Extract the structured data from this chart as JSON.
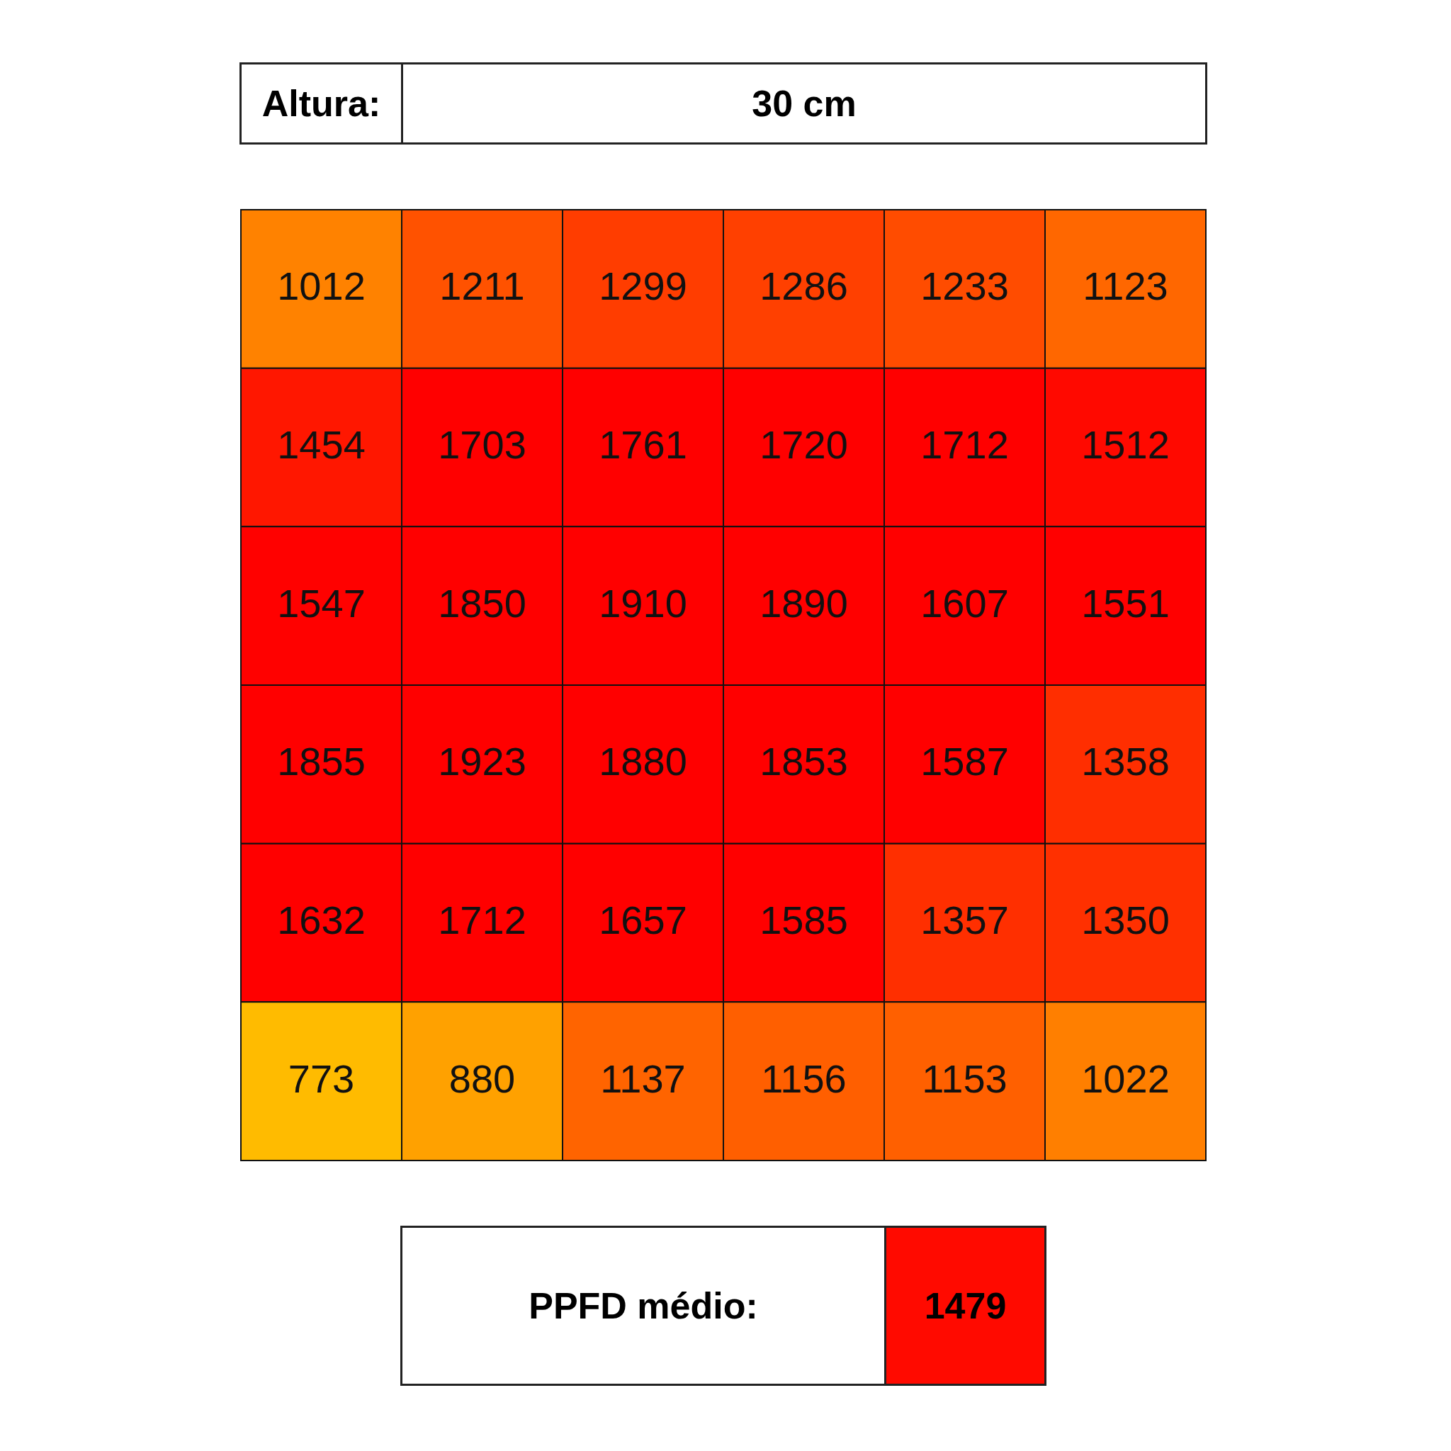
{
  "chart_data": {
    "type": "heatmap",
    "categories": [
      null,
      null,
      null,
      null,
      null,
      null
    ],
    "y_categories": [
      null,
      null,
      null,
      null,
      null,
      null
    ],
    "cells": [
      [
        1012,
        1211,
        1299,
        1286,
        1233,
        1123
      ],
      [
        1454,
        1703,
        1761,
        1720,
        1712,
        1512
      ],
      [
        1547,
        1850,
        1910,
        1890,
        1607,
        1551
      ],
      [
        1855,
        1923,
        1880,
        1853,
        1587,
        1358
      ],
      [
        1632,
        1712,
        1657,
        1585,
        1357,
        1350
      ],
      [
        773,
        880,
        1137,
        1156,
        1153,
        1022
      ]
    ],
    "data_labels": true,
    "annotations": [
      "Altura:",
      "30 cm",
      "PPFD médio:",
      "1479"
    ]
  }
}
